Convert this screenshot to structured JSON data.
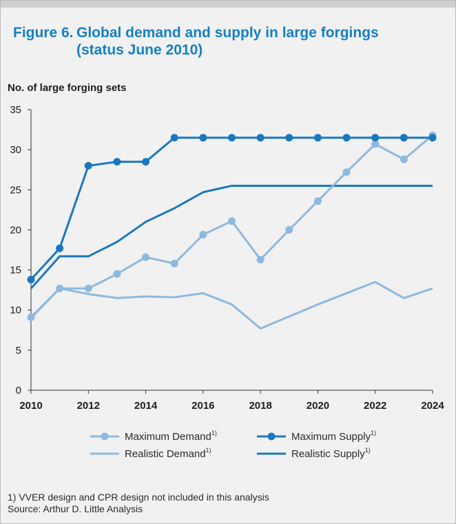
{
  "title": {
    "figure": "Figure 6.",
    "line1": "Global demand and supply in large forgings",
    "line2": "(status June 2010)"
  },
  "colors": {
    "light": "#8db9df",
    "dark": "#1a78bf",
    "title": "#1580c4"
  },
  "chart_data": {
    "type": "line",
    "title": "Global demand and supply in large forgings (status June 2010)",
    "ylabel": "No. of large forging sets",
    "xlabel": "",
    "ylim": [
      0,
      35
    ],
    "xlim": [
      2010,
      2024
    ],
    "yticks": [
      "0",
      "5",
      "10",
      "15",
      "20",
      "25",
      "30",
      "35"
    ],
    "xticks": [
      "2010",
      "2012",
      "2014",
      "2016",
      "2018",
      "2020",
      "2022",
      "2024"
    ],
    "grid": false,
    "legend_position": "bottom",
    "x": [
      2010,
      2011,
      2012,
      2013,
      2014,
      2015,
      2016,
      2017,
      2018,
      2019,
      2020,
      2021,
      2022,
      2023,
      2024
    ],
    "series": [
      {
        "name": "Maximum Demand",
        "marker": true,
        "color": "light",
        "values": [
          9.1,
          12.7,
          12.7,
          14.5,
          16.6,
          15.8,
          19.4,
          21.1,
          16.3,
          20.0,
          23.6,
          27.2,
          30.7,
          28.8,
          31.8
        ]
      },
      {
        "name": "Maximum Supply",
        "marker": true,
        "color": "dark",
        "values": [
          13.8,
          17.7,
          28.0,
          28.5,
          28.5,
          31.5,
          31.5,
          31.5,
          31.5,
          31.5,
          31.5,
          31.5,
          31.5,
          31.5,
          31.5
        ]
      },
      {
        "name": "Realistic Demand",
        "marker": false,
        "color": "light",
        "values": [
          9.0,
          12.7,
          12.0,
          11.5,
          11.7,
          11.6,
          12.1,
          10.7,
          7.7,
          9.2,
          10.7,
          12.1,
          13.5,
          11.5,
          12.7
        ]
      },
      {
        "name": "Realistic Supply",
        "marker": false,
        "color": "dark",
        "values": [
          12.7,
          16.7,
          16.7,
          18.5,
          21.0,
          22.7,
          24.7,
          25.5,
          25.5,
          25.5,
          25.5,
          25.5,
          25.5,
          25.5,
          25.5
        ]
      }
    ],
    "legend_superscript": "1)"
  },
  "footnote": {
    "line1": "1) VVER design and CPR design not included in this analysis",
    "line2": "Source: Arthur D. Little Analysis"
  }
}
